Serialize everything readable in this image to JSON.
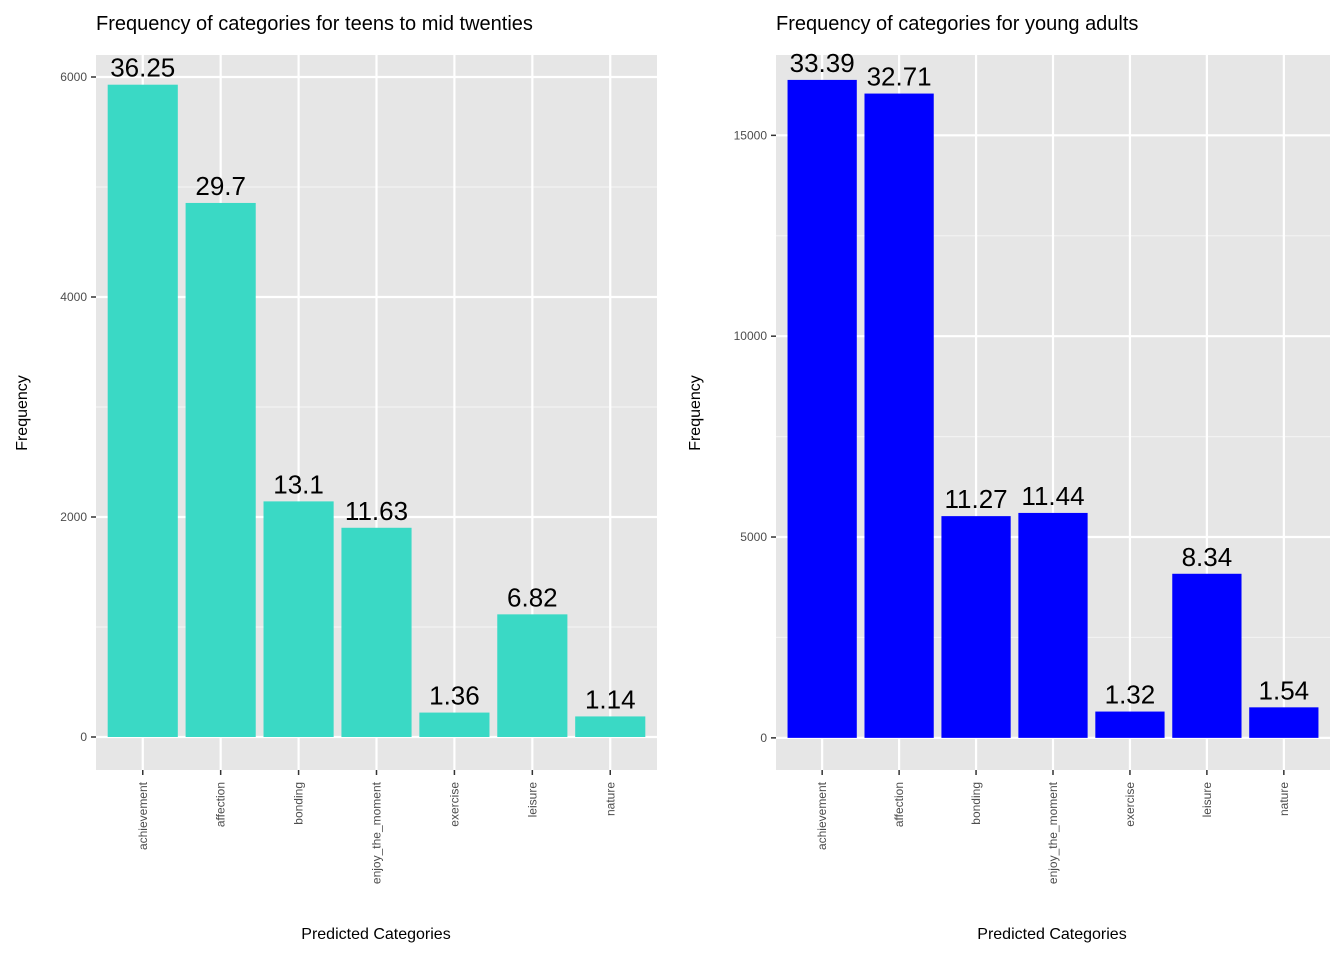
{
  "chart_data": [
    {
      "type": "bar",
      "title": "Frequency of categories for teens to mid twenties",
      "xlabel": "Predicted Categories",
      "ylabel": "Frequency",
      "categories": [
        "achievement",
        "affection",
        "bonding",
        "enjoy_the_moment",
        "exercise",
        "leisure",
        "nature"
      ],
      "values": [
        5930,
        4855,
        2142,
        1902,
        222,
        1115,
        187
      ],
      "data_labels": [
        "36.25",
        "29.7",
        "13.1",
        "11.63",
        "1.36",
        "6.82",
        "1.14"
      ],
      "yticks": [
        0,
        2000,
        4000,
        6000
      ],
      "ylim": [
        -300,
        6200
      ],
      "bar_color": "#3ad9c5",
      "panel_color": "#e6e6e6",
      "grid": true,
      "legend": "none"
    },
    {
      "type": "bar",
      "title": "Frequency of categories for young adults",
      "xlabel": "Predicted Categories",
      "ylabel": "Frequency",
      "categories": [
        "achievement",
        "affection",
        "bonding",
        "enjoy_the_moment",
        "exercise",
        "leisure",
        "nature"
      ],
      "values": [
        16380,
        16040,
        5520,
        5600,
        655,
        4085,
        760
      ],
      "data_labels": [
        "33.39",
        "32.71",
        "11.27",
        "11.44",
        "1.32",
        "8.34",
        "1.54"
      ],
      "yticks": [
        0,
        5000,
        10000,
        15000
      ],
      "ylim": [
        -800,
        17000
      ],
      "bar_color": "#0000ff",
      "panel_color": "#e6e6e6",
      "grid": true,
      "legend": "none"
    }
  ]
}
